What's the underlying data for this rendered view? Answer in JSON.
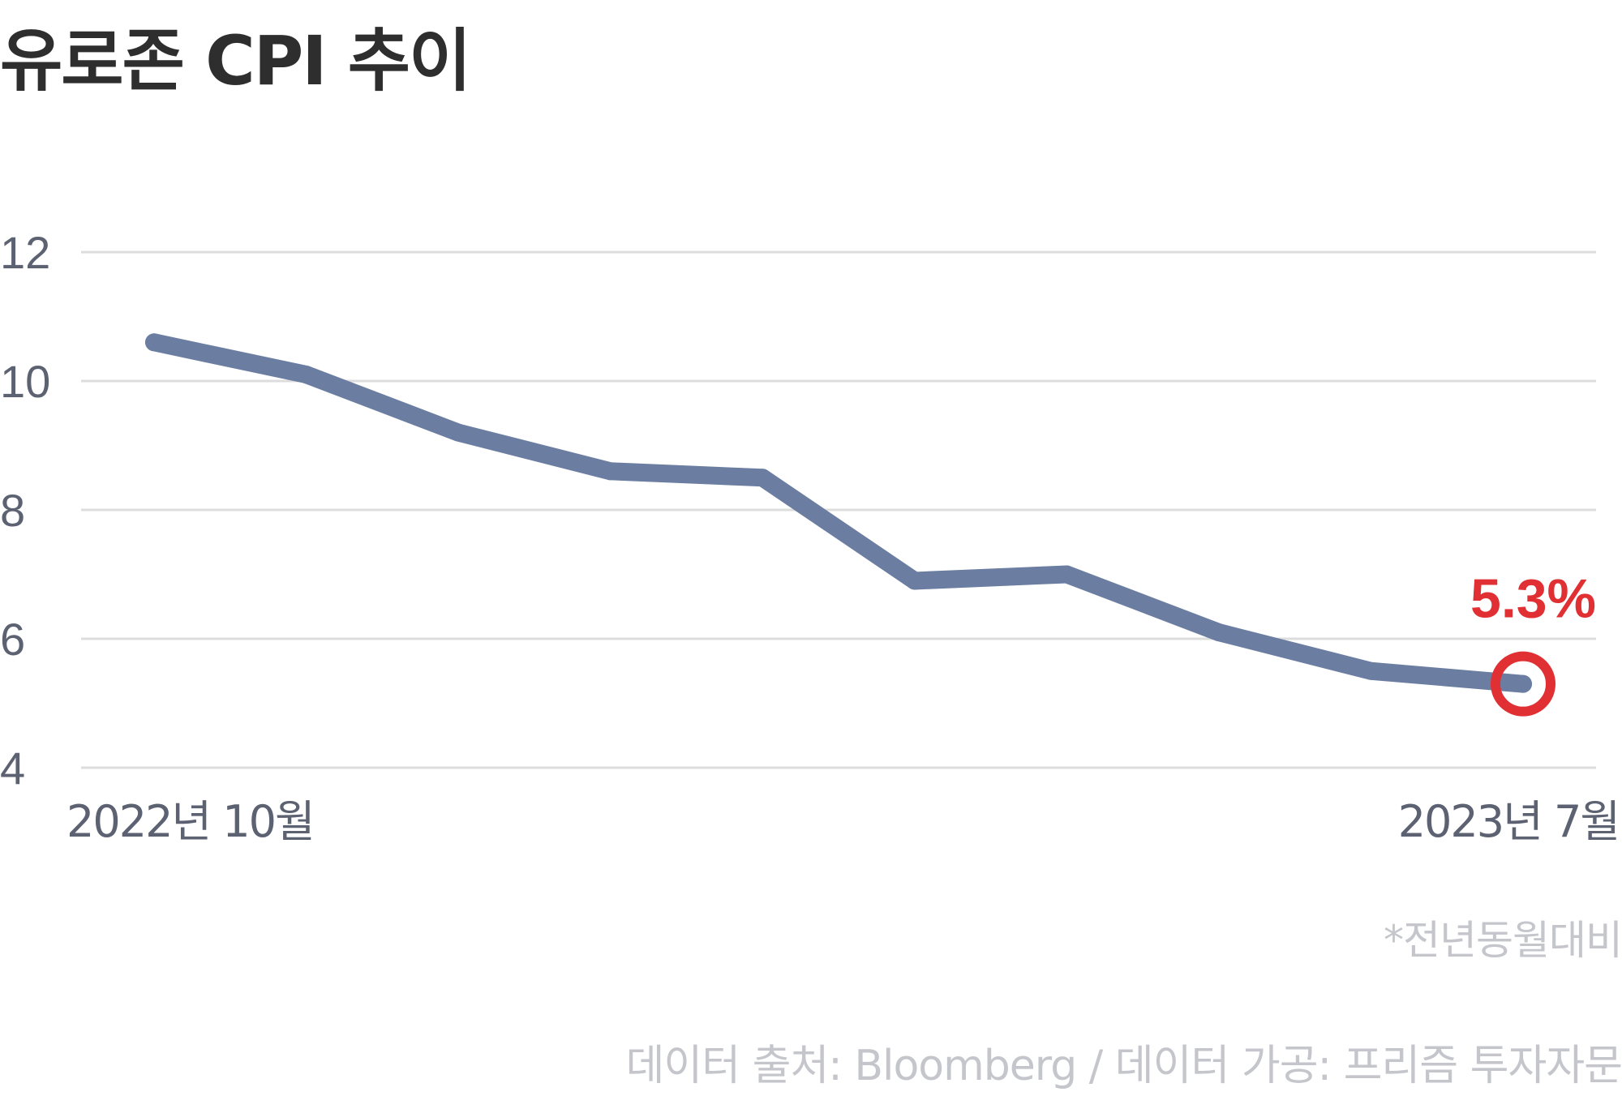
{
  "title": "유로존 CPI 추이",
  "note": "*전년동월대비",
  "source": "데이터 출처: Bloomberg / 데이터 가공: 프리즘 투자자문",
  "colors": {
    "line": "#6b7ea1",
    "highlight": "#e03033",
    "grid": "#dddddd",
    "tick_text": "#5d6272",
    "footnote_text": "#c4c6cc"
  },
  "chart_data": {
    "type": "line",
    "title": "유로존 CPI 추이",
    "x": [
      "2022-10",
      "2022-11",
      "2022-12",
      "2023-01",
      "2023-02",
      "2023-03",
      "2023-04",
      "2023-05",
      "2023-06",
      "2023-07"
    ],
    "x_tick_labels": [
      "2022년 10월",
      "2023년 7월"
    ],
    "series": [
      {
        "values": [
          10.6,
          10.1,
          9.2,
          8.6,
          8.5,
          6.9,
          7.0,
          6.1,
          5.5,
          5.3
        ]
      }
    ],
    "yticks": [
      4,
      6,
      8,
      10,
      12
    ],
    "ylim": [
      4,
      12
    ],
    "grid": true,
    "highlight": {
      "index": 9,
      "label": "5.3%"
    }
  }
}
